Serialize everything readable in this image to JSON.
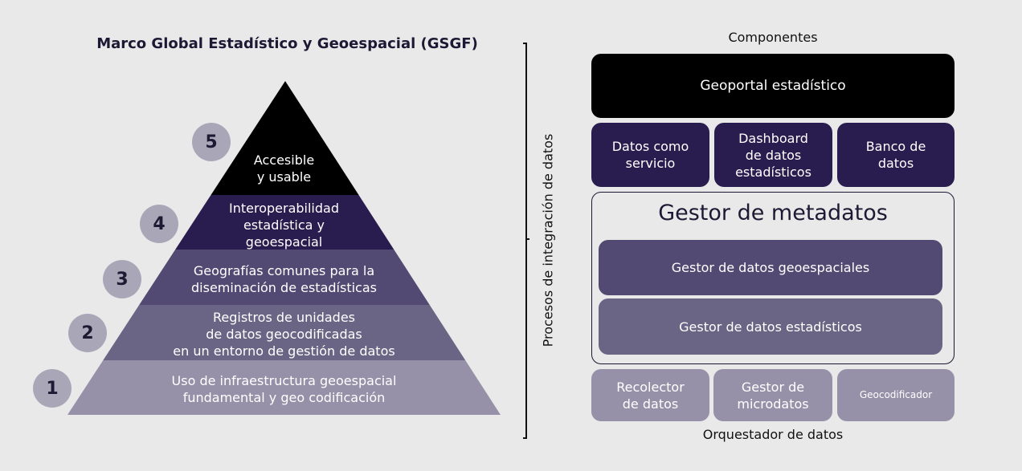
{
  "pyramid": {
    "title": "Marco Global Estadístico y Geoespacial (GSGF)",
    "levels": [
      {
        "number": "5",
        "label": "Accesible\ny usable",
        "color": "#000000"
      },
      {
        "number": "4",
        "label": "Interoperabilidad\nestadística y\ngeoespacial",
        "color": "#291d4f"
      },
      {
        "number": "3",
        "label": "Geografías comunes para la\ndiseminación de estadísticas",
        "color": "#524a72"
      },
      {
        "number": "2",
        "label": "Registros de unidades\nde datos geocodificadas\nen un entorno de gestión de datos",
        "color": "#6b6585"
      },
      {
        "number": "1",
        "label": "Uso de infraestructura geoespacial\nfundamental y geo codificación",
        "color": "#9691a8"
      }
    ]
  },
  "bracket_label": "Procesos de integración de datos",
  "components": {
    "header": "Componentes",
    "geoportal": "Geoportal estadístico",
    "services": [
      "Datos como\nservicio",
      "Dashboard\nde datos\nestadísticos",
      "Banco de\ndatos"
    ],
    "metadata": {
      "title": "Gestor de metadatos",
      "geo": "Gestor de datos geoespaciales",
      "stat": "Gestor de datos estadísticos"
    },
    "bottom": [
      "Recolector\nde datos",
      "Gestor de\nmicrodatos",
      "Geocodificador"
    ],
    "footer": "Orquestador de datos"
  }
}
